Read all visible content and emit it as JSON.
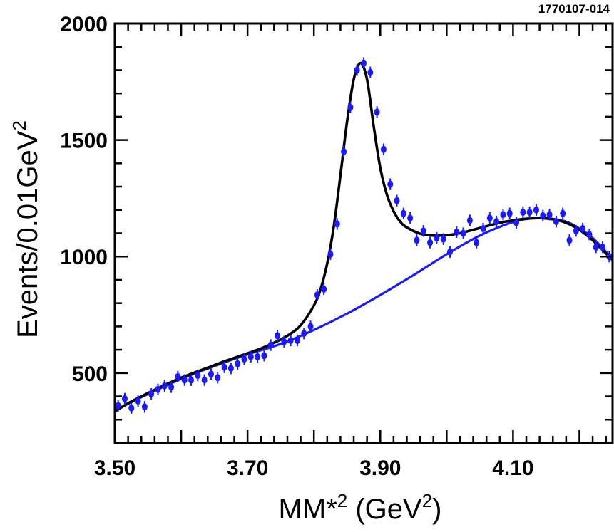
{
  "figure_id": "1770107-014",
  "chart_data": {
    "type": "scatter",
    "xlabel": "MM*",
    "xlabel_sup": "2",
    "xlabel_unit": " (GeV",
    "xlabel_unit_sup": "2",
    "xlabel_close": ")",
    "ylabel": "Events/0.01GeV",
    "ylabel_sup": "2",
    "xlim": [
      3.5,
      4.25
    ],
    "ylim": [
      200,
      2000
    ],
    "x_ticks": [
      {
        "value": 3.5,
        "label": "3.50"
      },
      {
        "value": 3.7,
        "label": "3.70"
      },
      {
        "value": 3.9,
        "label": "3.90"
      },
      {
        "value": 4.1,
        "label": "4.10"
      }
    ],
    "y_ticks": [
      {
        "value": 500,
        "label": "500"
      },
      {
        "value": 1000,
        "label": "1000"
      },
      {
        "value": 1500,
        "label": "1500"
      },
      {
        "value": 2000,
        "label": "2000"
      }
    ],
    "grid": false,
    "legend": "none",
    "colors": {
      "data": "#1a1aff",
      "total_fit": "#000000",
      "background_fit": "#1a1aff",
      "frame": "#000000"
    },
    "series": [
      {
        "kind": "points_with_errors",
        "x": [
          3.505,
          3.515,
          3.525,
          3.535,
          3.545,
          3.555,
          3.565,
          3.575,
          3.585,
          3.595,
          3.605,
          3.615,
          3.625,
          3.635,
          3.645,
          3.655,
          3.665,
          3.675,
          3.685,
          3.695,
          3.705,
          3.715,
          3.725,
          3.735,
          3.745,
          3.755,
          3.765,
          3.775,
          3.785,
          3.795,
          3.805,
          3.815,
          3.825,
          3.835,
          3.845,
          3.855,
          3.865,
          3.875,
          3.885,
          3.895,
          3.905,
          3.915,
          3.925,
          3.935,
          3.945,
          3.955,
          3.965,
          3.975,
          3.985,
          3.995,
          4.005,
          4.015,
          4.025,
          4.035,
          4.045,
          4.055,
          4.065,
          4.075,
          4.085,
          4.095,
          4.105,
          4.115,
          4.125,
          4.135,
          4.145,
          4.155,
          4.165,
          4.175,
          4.185,
          4.195,
          4.205,
          4.215,
          4.225,
          4.235,
          4.245
        ],
        "y": [
          360,
          390,
          350,
          380,
          355,
          410,
          430,
          445,
          440,
          485,
          470,
          470,
          490,
          470,
          495,
          480,
          525,
          520,
          540,
          560,
          570,
          570,
          575,
          620,
          660,
          635,
          640,
          640,
          670,
          700,
          835,
          860,
          1010,
          1140,
          1450,
          1640,
          1800,
          1830,
          1790,
          1620,
          1460,
          1310,
          1240,
          1185,
          1165,
          1070,
          1110,
          1060,
          1080,
          1075,
          1020,
          1105,
          1100,
          1155,
          1060,
          1120,
          1165,
          1150,
          1180,
          1185,
          1145,
          1190,
          1190,
          1200,
          1175,
          1180,
          1150,
          1185,
          1070,
          1110,
          1120,
          1095,
          1040,
          1040,
          1000
        ],
        "yerr": 25
      },
      {
        "kind": "total_fit_curve",
        "description_free": true,
        "x": [
          3.5,
          3.52,
          3.54,
          3.56,
          3.58,
          3.6,
          3.62,
          3.64,
          3.66,
          3.68,
          3.7,
          3.72,
          3.74,
          3.76,
          3.78,
          3.8,
          3.81,
          3.82,
          3.83,
          3.84,
          3.85,
          3.86,
          3.87,
          3.88,
          3.89,
          3.9,
          3.91,
          3.92,
          3.93,
          3.94,
          3.96,
          3.98,
          4.0,
          4.02,
          4.04,
          4.06,
          4.08,
          4.1,
          4.12,
          4.14,
          4.16,
          4.18,
          4.2,
          4.22,
          4.25
        ],
        "y": [
          335,
          370,
          400,
          428,
          455,
          480,
          502,
          523,
          545,
          565,
          585,
          605,
          630,
          660,
          705,
          790,
          860,
          970,
          1130,
          1350,
          1580,
          1760,
          1830,
          1760,
          1560,
          1380,
          1265,
          1195,
          1150,
          1125,
          1098,
          1090,
          1092,
          1100,
          1115,
          1130,
          1145,
          1155,
          1162,
          1165,
          1160,
          1145,
          1115,
          1070,
          985
        ]
      },
      {
        "kind": "background_fit_curve",
        "x": [
          3.5,
          3.55,
          3.6,
          3.65,
          3.7,
          3.75,
          3.8,
          3.85,
          3.9,
          3.95,
          4.0,
          4.05,
          4.1,
          4.13,
          4.15,
          4.18,
          4.2,
          4.22,
          4.25
        ],
        "y": [
          340,
          410,
          475,
          530,
          580,
          625,
          685,
          755,
          835,
          920,
          1010,
          1090,
          1148,
          1165,
          1165,
          1150,
          1120,
          1080,
          990
        ]
      }
    ]
  }
}
